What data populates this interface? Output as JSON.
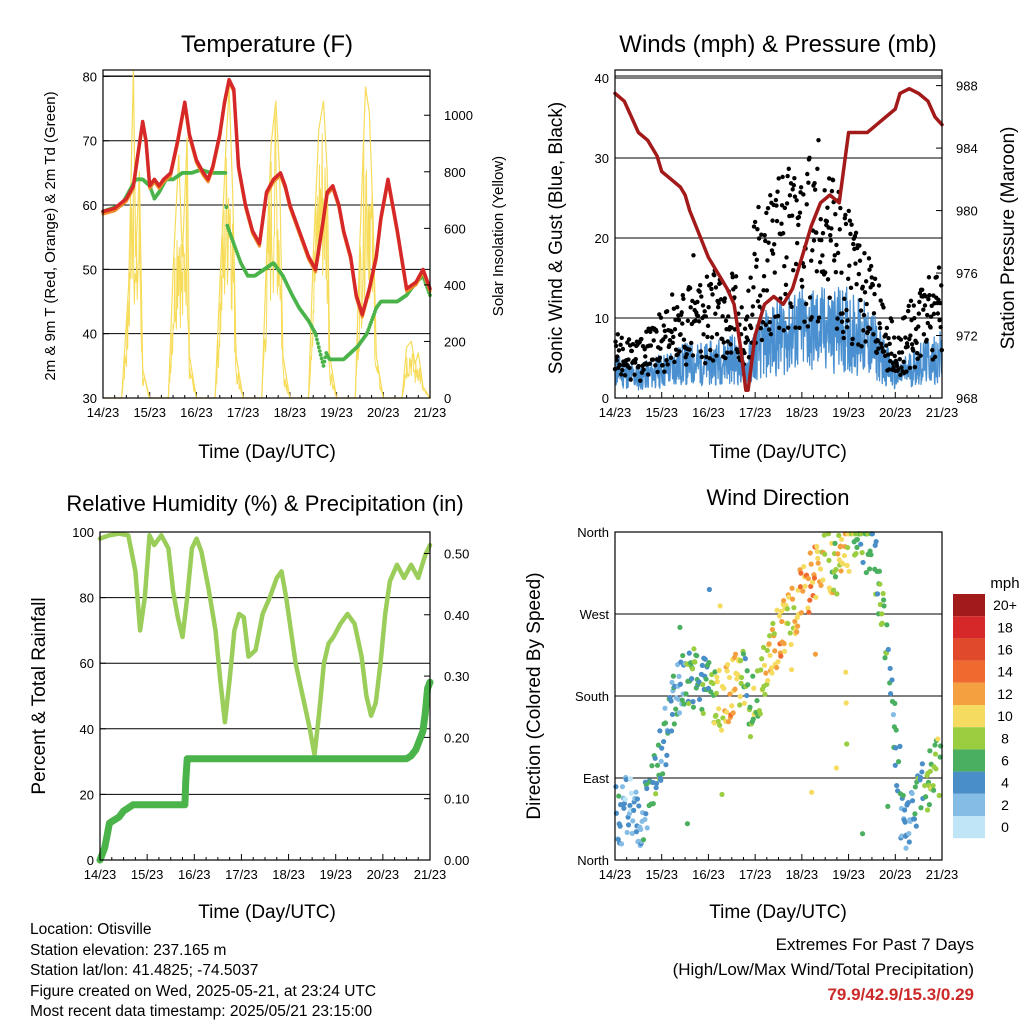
{
  "info": {
    "location": "Location: Otisville",
    "elevation": "Station elevation: 237.165 m",
    "latlon": "Station lat/lon: 41.4825; -74.5037",
    "created": "Figure created on Wed, 2025-05-21, at 23:24 UTC",
    "recent": "Most recent data timestamp: 2025/05/21 23:15:00"
  },
  "extremes": {
    "title": "Extremes For Past 7 Days",
    "subtitle": "(High/Low/Max Wind/Total Precipitation)",
    "values": "79.9/42.9/15.3/0.29"
  },
  "colors": {
    "temp_2m": "#d62828",
    "temp_9m": "#f08c28",
    "dewpoint": "#4ab34a",
    "solar": "#f7dc5a",
    "wind": "#4a90d0",
    "gust": "#000000",
    "pressure": "#a31a1a",
    "rh": "#9acd5a",
    "precip": "#4ab34a"
  },
  "chart_data": [
    {
      "id": "temp",
      "type": "line",
      "title": "Temperature (F)",
      "xlabel": "Time (Day/UTC)",
      "ylabel": "2m & 9m T (Red, Orange) & 2m Td (Green)",
      "y2label": "Solar Insolation (Yellow)",
      "xlim": [
        0,
        7
      ],
      "ylim": [
        30,
        81
      ],
      "y2lim": [
        0,
        1160
      ],
      "xticks": [
        "14/23",
        "15/23",
        "16/23",
        "17/23",
        "18/23",
        "19/23",
        "20/23",
        "21/23"
      ],
      "yticks": [
        30,
        40,
        50,
        60,
        70,
        80
      ],
      "y2ticks": [
        0,
        200,
        400,
        600,
        800,
        1000
      ],
      "grid": "horizontal",
      "series": [
        {
          "name": "2m T",
          "color_key": "temp_2m",
          "x": [
            0,
            0.25,
            0.5,
            0.65,
            0.75,
            0.85,
            0.92,
            1.0,
            1.1,
            1.2,
            1.3,
            1.45,
            1.6,
            1.75,
            1.85,
            2.0,
            2.15,
            2.25,
            2.35,
            2.5,
            2.6,
            2.7,
            2.8,
            2.9,
            3.05,
            3.2,
            3.35,
            3.5,
            3.65,
            3.8,
            3.9,
            4.0,
            4.2,
            4.4,
            4.55,
            4.7,
            4.8,
            4.92,
            5.05,
            5.15,
            5.3,
            5.42,
            5.55,
            5.7,
            5.85,
            5.95,
            6.1,
            6.3,
            6.5,
            6.7,
            6.85,
            7.0
          ],
          "y": [
            59,
            59.5,
            61,
            63,
            68,
            73,
            70,
            63,
            64,
            63,
            64,
            65,
            70,
            76,
            71,
            67,
            65,
            64,
            66,
            71,
            76,
            79.5,
            78,
            66,
            60,
            56,
            54,
            62,
            64,
            65,
            63,
            60,
            56,
            52,
            50,
            57,
            62,
            63,
            60,
            56,
            52,
            46,
            43,
            47,
            52,
            58,
            64,
            56,
            47,
            48,
            50,
            47
          ]
        },
        {
          "name": "2m Td",
          "color_key": "dewpoint",
          "x": [
            0,
            0.2,
            0.4,
            0.55,
            0.7,
            0.85,
            1.0,
            1.1,
            1.2,
            1.35,
            1.5,
            1.7,
            1.9,
            2.1,
            2.3,
            2.5,
            2.62,
            2.65,
            2.75,
            2.85,
            2.95,
            3.1,
            3.25,
            3.45,
            3.65,
            3.85,
            4.05,
            4.2,
            4.4,
            4.55,
            4.65,
            4.72,
            4.78,
            4.85,
            5.0,
            5.15,
            5.3,
            5.45,
            5.55,
            5.65,
            5.75,
            5.85,
            5.95,
            6.1,
            6.3,
            6.5,
            6.7,
            6.85,
            7.0
          ],
          "y": [
            59,
            59.5,
            60,
            62,
            64,
            64,
            63,
            61,
            62,
            64,
            64,
            65,
            65,
            65.5,
            65,
            65,
            65,
            57,
            55,
            53,
            51,
            49,
            49,
            50,
            51,
            49,
            46,
            44,
            42,
            40,
            37,
            35,
            37,
            36,
            36,
            36,
            37,
            38,
            39,
            40,
            42,
            44,
            45,
            45,
            45,
            46,
            48,
            49,
            46
          ]
        },
        {
          "name": "Solar",
          "color_key": "solar",
          "axis": "y2",
          "x": [
            0,
            0.4,
            0.55,
            0.65,
            0.7,
            0.78,
            0.85,
            1.0,
            1.4,
            1.5,
            1.62,
            1.7,
            1.8,
            1.85,
            2.0,
            2.4,
            2.5,
            2.62,
            2.7,
            2.78,
            2.85,
            3.0,
            3.4,
            3.5,
            3.6,
            3.7,
            3.78,
            3.85,
            4.0,
            4.4,
            4.5,
            4.62,
            4.72,
            4.8,
            4.85,
            5.0,
            5.4,
            5.5,
            5.62,
            5.7,
            5.78,
            5.85,
            6.0,
            6.4,
            6.5,
            6.6,
            6.68,
            6.75,
            6.85,
            7.0
          ],
          "y": [
            0,
            0,
            400,
            1160,
            500,
            800,
            100,
            0,
            0,
            450,
            860,
            500,
            920,
            150,
            0,
            0,
            400,
            850,
            1100,
            700,
            150,
            0,
            0,
            500,
            900,
            1050,
            800,
            150,
            0,
            0,
            500,
            950,
            1050,
            800,
            150,
            0,
            0,
            550,
            1100,
            1010,
            650,
            150,
            0,
            0,
            180,
            200,
            120,
            160,
            40,
            0
          ]
        }
      ]
    },
    {
      "id": "wind",
      "type": "scatter",
      "title": "Winds (mph) & Pressure (mb)",
      "xlabel": "Time (Day/UTC)",
      "ylabel": "Sonic Wind & Gust (Blue, Black)",
      "y2label": "Station Pressure (Maroon)",
      "xlim": [
        0,
        7
      ],
      "ylim": [
        0,
        41
      ],
      "y2lim": [
        968,
        989
      ],
      "xticks": [
        "14/23",
        "15/23",
        "16/23",
        "17/23",
        "18/23",
        "19/23",
        "20/23",
        "21/23"
      ],
      "yticks": [
        0,
        10,
        20,
        30,
        40
      ],
      "y2ticks": [
        968,
        972,
        976,
        980,
        984,
        988
      ],
      "grid": "horizontal",
      "series": [
        {
          "name": "Sonic Wind",
          "color_key": "wind",
          "kind": "band",
          "x": [
            0,
            0.5,
            1.0,
            1.5,
            2.0,
            2.5,
            2.8,
            3.0,
            3.5,
            4.0,
            4.5,
            5.0,
            5.5,
            6.0,
            6.5,
            7.0
          ],
          "y": [
            4,
            3,
            4,
            5,
            5,
            6,
            4,
            7,
            9,
            10,
            10,
            10,
            8,
            3,
            5,
            6
          ]
        },
        {
          "name": "Gust",
          "color_key": "gust",
          "kind": "dots",
          "x": [
            0,
            0.5,
            1.0,
            1.5,
            2.0,
            2.5,
            2.8,
            3.0,
            3.5,
            4.0,
            4.5,
            5.0,
            5.5,
            6.0,
            6.5,
            7.0
          ],
          "y": [
            6,
            5,
            8,
            10,
            11,
            13,
            7,
            17,
            20,
            22,
            21,
            17,
            12,
            6,
            10,
            12
          ]
        },
        {
          "name": "Pressure",
          "color_key": "pressure",
          "axis": "y2",
          "x": [
            0,
            0.2,
            0.35,
            0.5,
            0.7,
            0.9,
            1.0,
            1.2,
            1.4,
            1.5,
            1.6,
            1.8,
            2.0,
            2.2,
            2.4,
            2.55,
            2.7,
            2.8,
            2.85,
            3.0,
            3.2,
            3.4,
            3.6,
            3.8,
            4.0,
            4.2,
            4.4,
            4.6,
            4.8,
            5.0,
            5.2,
            5.4,
            5.6,
            5.8,
            6.0,
            6.1,
            6.3,
            6.5,
            6.7,
            6.85,
            7.0
          ],
          "y": [
            987.5,
            987,
            986,
            985,
            984.5,
            983.5,
            982.5,
            982,
            981.5,
            981,
            980,
            978.5,
            977,
            976,
            975,
            974,
            971,
            968.5,
            968.5,
            972,
            974,
            974.5,
            974,
            975,
            977,
            979,
            980.5,
            981,
            980.5,
            985,
            985,
            985,
            985.5,
            986,
            986.5,
            987.5,
            987.8,
            987.5,
            987,
            986,
            985.5
          ]
        }
      ]
    },
    {
      "id": "rh",
      "type": "line",
      "title": "Relative Humidity (%) & Precipitation (in)",
      "xlabel": "Time (Day/UTC)",
      "ylabel": "Percent & Total Rainfall",
      "xlim": [
        0,
        7
      ],
      "ylim": [
        0,
        100
      ],
      "y2lim": [
        0,
        0.535
      ],
      "xticks": [
        "14/23",
        "15/23",
        "16/23",
        "17/23",
        "18/23",
        "19/23",
        "20/23",
        "21/23"
      ],
      "yticks": [
        0,
        20,
        40,
        60,
        80,
        100
      ],
      "y2ticks": [
        "0.00",
        "0.10",
        "0.20",
        "0.30",
        "0.40",
        "0.50"
      ],
      "grid": "horizontal",
      "series": [
        {
          "name": "RH",
          "color_key": "rh",
          "x": [
            0,
            0.2,
            0.4,
            0.6,
            0.75,
            0.85,
            0.95,
            1.05,
            1.15,
            1.3,
            1.45,
            1.55,
            1.65,
            1.75,
            1.85,
            1.95,
            2.05,
            2.15,
            2.3,
            2.45,
            2.55,
            2.65,
            2.75,
            2.85,
            2.95,
            3.05,
            3.15,
            3.3,
            3.45,
            3.6,
            3.75,
            3.85,
            3.95,
            4.05,
            4.15,
            4.3,
            4.45,
            4.55,
            4.65,
            4.75,
            4.85,
            4.95,
            5.1,
            5.25,
            5.4,
            5.55,
            5.65,
            5.75,
            5.85,
            5.95,
            6.05,
            6.15,
            6.3,
            6.45,
            6.6,
            6.75,
            6.9,
            7.0
          ],
          "y": [
            98,
            99,
            99.5,
            99,
            88,
            70,
            80,
            99,
            96,
            99,
            95,
            82,
            74,
            68,
            80,
            95,
            98,
            94,
            83,
            70,
            55,
            42,
            55,
            70,
            75,
            74,
            62,
            64,
            75,
            80,
            86,
            88,
            80,
            70,
            60,
            50,
            40,
            32,
            45,
            60,
            66,
            68,
            72,
            75,
            72,
            62,
            50,
            44,
            48,
            60,
            75,
            85,
            90,
            86,
            90,
            86,
            93,
            96
          ]
        },
        {
          "name": "Precip",
          "color_key": "precip",
          "axis": "y2",
          "x": [
            0,
            0.05,
            0.1,
            0.15,
            0.2,
            0.3,
            0.4,
            0.5,
            0.6,
            0.7,
            0.8,
            1.0,
            1.2,
            1.4,
            1.6,
            1.8,
            1.82,
            1.85,
            2.0,
            3.0,
            4.0,
            5.0,
            6.0,
            6.5,
            6.6,
            6.7,
            6.8,
            6.85,
            6.9,
            6.95,
            7.0
          ],
          "y": [
            0,
            0.01,
            0.02,
            0.04,
            0.06,
            0.065,
            0.07,
            0.08,
            0.085,
            0.09,
            0.09,
            0.09,
            0.09,
            0.09,
            0.09,
            0.09,
            0.13,
            0.165,
            0.165,
            0.165,
            0.165,
            0.165,
            0.165,
            0.165,
            0.17,
            0.18,
            0.2,
            0.21,
            0.24,
            0.28,
            0.29
          ]
        }
      ]
    },
    {
      "id": "wdir",
      "type": "scatter",
      "title": "Wind Direction",
      "xlabel": "Time (Day/UTC)",
      "ylabel": "Direction (Colored By Speed)",
      "xlim": [
        0,
        7
      ],
      "ylim": [
        0,
        360
      ],
      "xticks": [
        "14/23",
        "15/23",
        "16/23",
        "17/23",
        "18/23",
        "19/23",
        "20/23",
        "21/23"
      ],
      "yticks": [
        "North",
        "East",
        "South",
        "West",
        "North"
      ],
      "grid": "horizontal",
      "legend": {
        "title": "mph",
        "labels": [
          "20+",
          "18",
          "16",
          "14",
          "12",
          "10",
          "8",
          "6",
          "4",
          "2",
          "0"
        ],
        "colors": [
          "#a31a1a",
          "#d62828",
          "#e04a2a",
          "#f06a30",
          "#f5a040",
          "#f5dc60",
          "#9acd40",
          "#4ab060",
          "#4a8ec8",
          "#84bce6",
          "#bfe5f7"
        ],
        "placement": "right"
      },
      "x": [
        0.1,
        0.3,
        0.5,
        0.7,
        0.9,
        1.1,
        1.3,
        1.5,
        1.7,
        1.9,
        2.1,
        2.3,
        2.5,
        2.7,
        2.9,
        3.1,
        3.3,
        3.5,
        3.7,
        3.9,
        4.1,
        4.3,
        4.5,
        4.7,
        4.9,
        5.1,
        5.3,
        5.5,
        5.7,
        5.9,
        6.1,
        6.3,
        6.5,
        6.7,
        6.9
      ],
      "y": [
        50,
        60,
        40,
        70,
        100,
        140,
        180,
        200,
        210,
        190,
        180,
        170,
        190,
        200,
        170,
        180,
        230,
        250,
        260,
        280,
        300,
        310,
        330,
        320,
        340,
        350,
        350,
        350,
        280,
        200,
        60,
        40,
        60,
        90,
        100
      ],
      "speed": [
        3,
        2,
        3,
        4,
        5,
        5,
        4,
        5,
        6,
        5,
        7,
        10,
        12,
        8,
        6,
        8,
        10,
        12,
        10,
        11,
        12,
        12,
        10,
        9,
        10,
        8,
        6,
        6,
        6,
        5,
        4,
        3,
        6,
        7,
        8
      ]
    }
  ]
}
